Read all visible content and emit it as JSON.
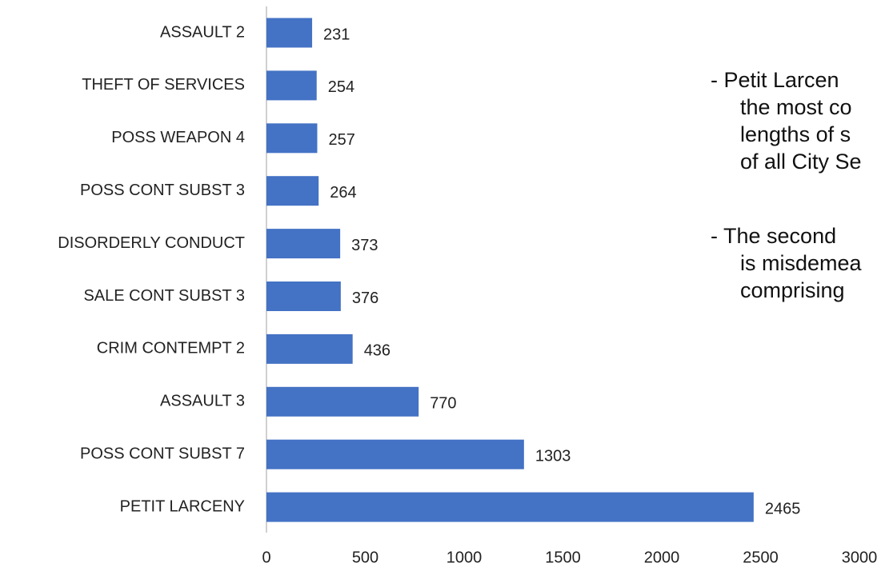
{
  "chart_data": {
    "type": "bar",
    "orientation": "horizontal",
    "categories": [
      "ASSAULT 2",
      "THEFT OF SERVICES",
      "POSS WEAPON 4",
      "POSS CONT SUBST 3",
      "DISORDERLY CONDUCT",
      "SALE CONT SUBST 3",
      "CRIM CONTEMPT 2",
      "ASSAULT 3",
      "POSS CONT SUBST 7",
      "PETIT LARCENY"
    ],
    "values": [
      231,
      254,
      257,
      264,
      373,
      376,
      436,
      770,
      1303,
      2465
    ],
    "color": "#4472c4",
    "xlim": [
      0,
      3000
    ],
    "xticks": [
      0,
      500,
      1000,
      1500,
      2000,
      2500,
      3000
    ],
    "annotations": [
      [
        "- Petit Larcen",
        "the most co",
        "lengths of s",
        "of all City Se"
      ],
      [
        "- The second",
        "is misdemea",
        "comprising"
      ]
    ]
  }
}
